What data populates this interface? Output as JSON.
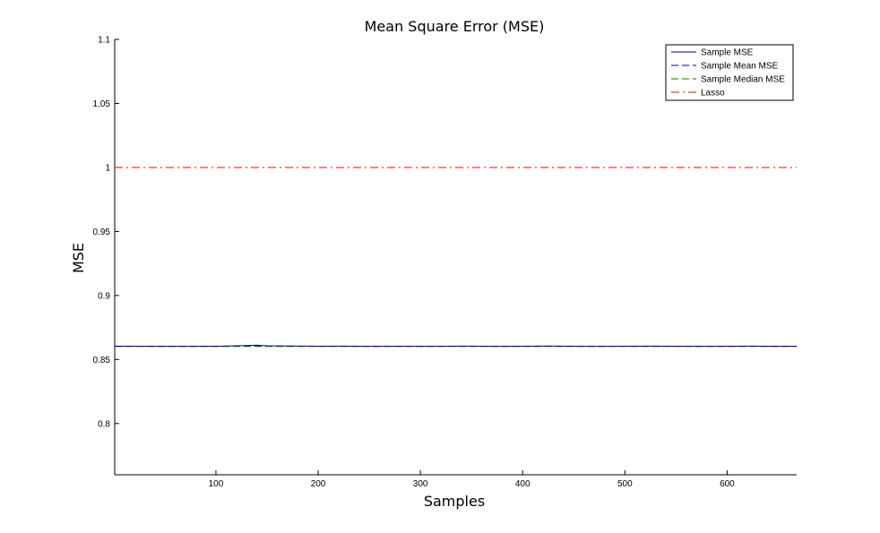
{
  "chart_data": {
    "type": "line",
    "title": "Mean Square Error (MSE)",
    "xlabel": "Samples",
    "ylabel": "MSE",
    "xlim": [
      1,
      668
    ],
    "ylim": [
      0.76,
      1.1
    ],
    "xticks": [
      100,
      200,
      300,
      400,
      500,
      600
    ],
    "yticks": [
      0.8,
      0.85,
      0.9,
      0.95,
      1,
      1.05,
      1.1
    ],
    "grid": false,
    "legend_position": "top-right",
    "series": [
      {
        "name": "Sample MSE",
        "style": "solid",
        "color": "#00008b",
        "x": [
          1,
          25,
          50,
          75,
          100,
          125,
          140,
          150,
          175,
          200,
          225,
          250,
          275,
          300,
          325,
          350,
          375,
          400,
          425,
          450,
          475,
          500,
          525,
          550,
          575,
          600,
          625,
          650,
          668
        ],
        "values": [
          0.8605,
          0.8604,
          0.8603,
          0.8603,
          0.8604,
          0.8608,
          0.8612,
          0.8607,
          0.8606,
          0.8604,
          0.8605,
          0.8603,
          0.8604,
          0.8603,
          0.8604,
          0.8605,
          0.8603,
          0.8604,
          0.8606,
          0.8604,
          0.8603,
          0.8604,
          0.8605,
          0.8604,
          0.8603,
          0.8604,
          0.8605,
          0.8603,
          0.8604
        ]
      },
      {
        "name": "Sample Mean MSE",
        "style": "dashed",
        "color": "#00008b",
        "x": [
          1,
          668
        ],
        "values": [
          0.8604,
          0.8604
        ]
      },
      {
        "name": "Sample Median MSE",
        "style": "dashed",
        "color": "#008000",
        "x": [
          1,
          668
        ],
        "values": [
          0.8602,
          0.8602
        ]
      },
      {
        "name": "Lasso",
        "style": "dashdot",
        "color": "#ff0000",
        "x": [
          1,
          668
        ],
        "values": [
          1,
          1
        ]
      }
    ]
  }
}
